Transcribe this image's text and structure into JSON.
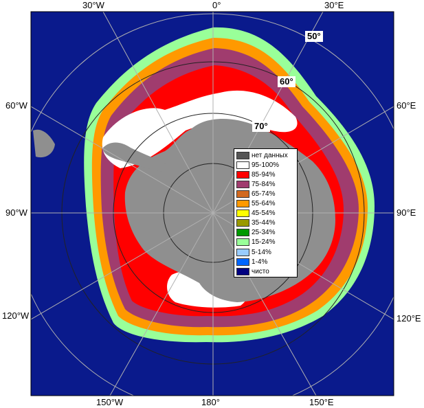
{
  "map": {
    "longitude_labels": {
      "top": [
        "30°W",
        "0°",
        "30°E"
      ],
      "left": [
        "60°W",
        "90°W",
        "120°W"
      ],
      "right": [
        "60°E",
        "90°E",
        "120°E"
      ],
      "bottom": [
        "150°W",
        "180°",
        "150°E"
      ]
    },
    "latitude_labels": [
      "50°",
      "60°",
      "70°"
    ],
    "colors": {
      "ocean": "#0a1a8c",
      "continent": "#8f8f8f",
      "grid": "#b0b0b0"
    }
  },
  "legend": {
    "items": [
      {
        "label": "нет данных",
        "color": "#555555"
      },
      {
        "label": "95-100%",
        "color": "#ffffff"
      },
      {
        "label": "85-94%",
        "color": "#ff0000"
      },
      {
        "label": "75-84%",
        "color": "#a03c6e"
      },
      {
        "label": "65-74%",
        "color": "#d2691e"
      },
      {
        "label": "55-64%",
        "color": "#ff9900"
      },
      {
        "label": "45-54%",
        "color": "#ffff00"
      },
      {
        "label": "35-44%",
        "color": "#999900"
      },
      {
        "label": "25-34%",
        "color": "#009900"
      },
      {
        "label": "15-24%",
        "color": "#99ff99"
      },
      {
        "label": "5-14%",
        "color": "#99ccff"
      },
      {
        "label": "1-4%",
        "color": "#0066ff"
      },
      {
        "label": "чисто",
        "color": "#000080"
      }
    ]
  }
}
